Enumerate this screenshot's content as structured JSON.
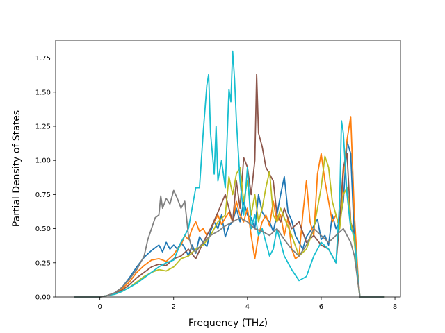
{
  "chart_data": {
    "type": "line",
    "title": "",
    "xlabel": "Frequency (THz)",
    "ylabel": "Partial Density of States",
    "xlim": [
      -1.2,
      8.15
    ],
    "ylim": [
      0,
      1.88
    ],
    "x_ticks": [
      0,
      2,
      4,
      6,
      8
    ],
    "y_ticks": [
      0.0,
      0.25,
      0.5,
      0.75,
      1.0,
      1.25,
      1.5,
      1.75
    ],
    "x_tick_labels": [
      "0",
      "2",
      "4",
      "6",
      "8"
    ],
    "y_tick_labels": [
      "0.00",
      "0.25",
      "0.50",
      "0.75",
      "1.00",
      "1.25",
      "1.50",
      "1.75"
    ],
    "grid": false,
    "colors": [
      "#1f77b4",
      "#ff7f0e",
      "#8c564b",
      "#bcbd22",
      "#17becf",
      "#7f7f7f"
    ],
    "series": [
      {
        "x": [
          -0.7,
          0.0,
          0.2,
          0.4,
          0.6,
          0.8,
          1.0,
          1.2,
          1.4,
          1.6,
          1.7,
          1.8,
          1.9,
          2.0,
          2.1,
          2.2,
          2.3,
          2.4,
          2.5,
          2.6,
          2.7,
          2.8,
          2.9,
          3.0,
          3.1,
          3.2,
          3.3,
          3.4,
          3.5,
          3.6,
          3.7,
          3.8,
          3.9,
          4.0,
          4.1,
          4.2,
          4.3,
          4.4,
          4.5,
          4.6,
          4.7,
          4.8,
          4.9,
          5.0,
          5.1,
          5.2,
          5.3,
          5.4,
          5.5,
          5.6,
          5.7,
          5.8,
          5.9,
          6.0,
          6.1,
          6.2,
          6.3,
          6.4,
          6.5,
          6.6,
          6.7,
          6.8,
          6.9,
          7.0,
          7.05,
          7.2,
          7.7
        ],
        "y": [
          0,
          0,
          0.01,
          0.03,
          0.07,
          0.14,
          0.22,
          0.29,
          0.34,
          0.38,
          0.33,
          0.4,
          0.35,
          0.38,
          0.35,
          0.4,
          0.36,
          0.3,
          0.38,
          0.32,
          0.44,
          0.4,
          0.37,
          0.48,
          0.55,
          0.5,
          0.6,
          0.44,
          0.52,
          0.55,
          0.65,
          0.55,
          0.7,
          0.6,
          0.58,
          0.5,
          0.75,
          0.62,
          0.58,
          0.55,
          0.48,
          0.6,
          0.75,
          0.88,
          0.62,
          0.56,
          0.45,
          0.4,
          0.35,
          0.44,
          0.48,
          0.52,
          0.57,
          0.42,
          0.45,
          0.38,
          0.6,
          0.5,
          0.55,
          0.7,
          1.14,
          1.05,
          0.42,
          0.15,
          0,
          0,
          0
        ]
      },
      {
        "x": [
          -0.7,
          0.0,
          0.2,
          0.4,
          0.6,
          0.8,
          1.0,
          1.2,
          1.4,
          1.6,
          1.8,
          2.0,
          2.1,
          2.2,
          2.3,
          2.4,
          2.5,
          2.6,
          2.7,
          2.8,
          2.9,
          3.0,
          3.1,
          3.2,
          3.3,
          3.4,
          3.5,
          3.6,
          3.7,
          3.8,
          3.9,
          4.0,
          4.1,
          4.2,
          4.3,
          4.4,
          4.5,
          4.6,
          4.7,
          4.8,
          4.9,
          5.0,
          5.1,
          5.2,
          5.3,
          5.4,
          5.5,
          5.6,
          5.7,
          5.8,
          5.9,
          6.0,
          6.1,
          6.2,
          6.3,
          6.4,
          6.5,
          6.6,
          6.7,
          6.8,
          6.9,
          7.0,
          7.05,
          7.2,
          7.7
        ],
        "y": [
          0,
          0,
          0.01,
          0.03,
          0.06,
          0.11,
          0.18,
          0.23,
          0.27,
          0.28,
          0.26,
          0.31,
          0.35,
          0.38,
          0.45,
          0.42,
          0.5,
          0.55,
          0.48,
          0.5,
          0.45,
          0.5,
          0.55,
          0.6,
          0.53,
          0.58,
          0.62,
          0.55,
          0.7,
          0.6,
          0.55,
          0.65,
          0.45,
          0.28,
          0.45,
          0.55,
          0.6,
          0.52,
          0.7,
          0.55,
          0.6,
          0.45,
          0.58,
          0.35,
          0.28,
          0.3,
          0.6,
          0.85,
          0.55,
          0.45,
          0.9,
          1.05,
          0.85,
          0.7,
          0.55,
          0.6,
          0.5,
          0.9,
          1.15,
          1.32,
          0.6,
          0.15,
          0,
          0,
          0
        ]
      },
      {
        "x": [
          -0.7,
          0.0,
          0.2,
          0.4,
          0.6,
          0.8,
          1.0,
          1.2,
          1.4,
          1.6,
          1.8,
          2.0,
          2.2,
          2.4,
          2.6,
          2.8,
          3.0,
          3.2,
          3.4,
          3.6,
          3.7,
          3.8,
          3.9,
          4.0,
          4.1,
          4.2,
          4.25,
          4.3,
          4.4,
          4.5,
          4.6,
          4.7,
          4.8,
          4.9,
          5.0,
          5.2,
          5.4,
          5.6,
          5.8,
          6.0,
          6.2,
          6.4,
          6.5,
          6.6,
          6.7,
          6.8,
          6.9,
          7.0,
          7.05,
          7.2,
          7.7
        ],
        "y": [
          0,
          0,
          0.01,
          0.03,
          0.05,
          0.09,
          0.14,
          0.18,
          0.22,
          0.24,
          0.23,
          0.28,
          0.3,
          0.35,
          0.28,
          0.4,
          0.5,
          0.62,
          0.75,
          0.55,
          0.85,
          0.65,
          1.02,
          0.95,
          0.75,
          1.0,
          1.63,
          1.2,
          1.1,
          0.95,
          0.9,
          0.85,
          0.6,
          0.55,
          0.65,
          0.5,
          0.55,
          0.4,
          0.45,
          0.38,
          0.35,
          0.25,
          0.55,
          0.95,
          1.05,
          0.55,
          0.45,
          0.1,
          0,
          0,
          0
        ]
      },
      {
        "x": [
          -0.7,
          0.0,
          0.2,
          0.4,
          0.6,
          0.8,
          1.0,
          1.2,
          1.4,
          1.6,
          1.8,
          2.0,
          2.2,
          2.4,
          2.6,
          2.8,
          3.0,
          3.2,
          3.4,
          3.5,
          3.6,
          3.7,
          3.8,
          3.9,
          4.0,
          4.1,
          4.2,
          4.3,
          4.4,
          4.5,
          4.6,
          4.7,
          4.8,
          4.9,
          5.0,
          5.2,
          5.4,
          5.6,
          5.8,
          6.0,
          6.1,
          6.2,
          6.3,
          6.4,
          6.5,
          6.6,
          6.7,
          6.8,
          6.9,
          7.0,
          7.05,
          7.2,
          7.7
        ],
        "y": [
          0,
          0,
          0.01,
          0.02,
          0.04,
          0.07,
          0.11,
          0.15,
          0.18,
          0.2,
          0.19,
          0.22,
          0.28,
          0.3,
          0.35,
          0.38,
          0.45,
          0.55,
          0.6,
          0.88,
          0.75,
          0.9,
          0.95,
          0.7,
          0.85,
          0.6,
          0.75,
          0.55,
          0.65,
          0.8,
          0.92,
          0.6,
          0.55,
          0.65,
          0.58,
          0.45,
          0.3,
          0.35,
          0.5,
          0.8,
          1.03,
          0.95,
          0.7,
          0.6,
          0.5,
          0.75,
          0.8,
          0.55,
          0.4,
          0.1,
          0,
          0,
          0
        ]
      },
      {
        "x": [
          -0.7,
          0.0,
          0.2,
          0.4,
          0.6,
          0.8,
          1.0,
          1.2,
          1.4,
          1.6,
          1.8,
          2.0,
          2.2,
          2.4,
          2.6,
          2.7,
          2.8,
          2.9,
          2.95,
          3.0,
          3.1,
          3.15,
          3.2,
          3.3,
          3.4,
          3.5,
          3.55,
          3.6,
          3.65,
          3.7,
          3.8,
          3.9,
          4.0,
          4.1,
          4.2,
          4.3,
          4.4,
          4.5,
          4.6,
          4.7,
          4.8,
          4.9,
          5.0,
          5.2,
          5.4,
          5.6,
          5.8,
          6.0,
          6.2,
          6.4,
          6.5,
          6.55,
          6.6,
          6.7,
          6.8,
          6.9,
          7.0,
          7.05,
          7.2,
          7.7
        ],
        "y": [
          0,
          0,
          0.01,
          0.02,
          0.04,
          0.07,
          0.1,
          0.14,
          0.18,
          0.22,
          0.25,
          0.27,
          0.4,
          0.5,
          0.8,
          0.8,
          1.2,
          1.55,
          1.63,
          1.2,
          0.9,
          1.25,
          0.85,
          1.0,
          0.8,
          1.52,
          1.43,
          1.8,
          1.6,
          1.3,
          0.85,
          0.6,
          0.95,
          0.5,
          0.6,
          0.45,
          0.5,
          0.4,
          0.3,
          0.35,
          0.5,
          0.4,
          0.3,
          0.2,
          0.12,
          0.15,
          0.3,
          0.4,
          0.35,
          0.25,
          0.7,
          1.29,
          1.2,
          0.75,
          0.5,
          0.45,
          0.12,
          0,
          0,
          0
        ]
      },
      {
        "x": [
          -0.7,
          0.0,
          0.2,
          0.4,
          0.6,
          0.8,
          1.0,
          1.2,
          1.3,
          1.4,
          1.5,
          1.6,
          1.65,
          1.7,
          1.8,
          1.9,
          2.0,
          2.1,
          2.2,
          2.3,
          2.4,
          2.5,
          2.6,
          2.8,
          3.0,
          3.2,
          3.4,
          3.6,
          3.8,
          4.0,
          4.2,
          4.4,
          4.6,
          4.8,
          5.0,
          5.2,
          5.4,
          5.6,
          5.8,
          6.0,
          6.2,
          6.4,
          6.6,
          6.8,
          6.9,
          7.0,
          7.05,
          7.2,
          7.7
        ],
        "y": [
          0,
          0,
          0.01,
          0.03,
          0.07,
          0.13,
          0.2,
          0.3,
          0.42,
          0.5,
          0.58,
          0.6,
          0.74,
          0.65,
          0.72,
          0.68,
          0.78,
          0.72,
          0.65,
          0.7,
          0.45,
          0.35,
          0.33,
          0.4,
          0.45,
          0.48,
          0.52,
          0.55,
          0.58,
          0.55,
          0.5,
          0.48,
          0.45,
          0.5,
          0.42,
          0.35,
          0.3,
          0.38,
          0.5,
          0.45,
          0.4,
          0.45,
          0.5,
          0.4,
          0.3,
          0.1,
          0,
          0,
          0
        ]
      }
    ]
  }
}
